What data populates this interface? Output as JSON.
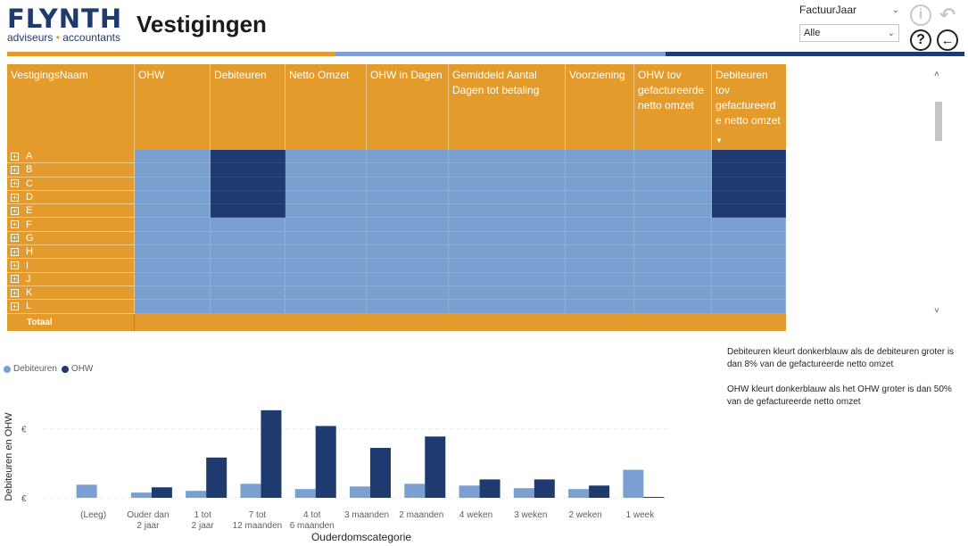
{
  "header": {
    "logo_main": "FLYNTH",
    "logo_sub_left": "adviseurs",
    "logo_sub_sep": "•",
    "logo_sub_right": "accountants",
    "title": "Vestigingen"
  },
  "slicer": {
    "label": "FactuurJaar",
    "value": "Alle"
  },
  "icons": {
    "info": "info-icon",
    "undo": "undo-icon",
    "help": "help-icon",
    "back": "back-icon"
  },
  "colors": {
    "orange": "#e39b2b",
    "light_blue": "#7aa0d2",
    "dark_blue": "#1f3a6e"
  },
  "table": {
    "columns": [
      "VestigingsNaam",
      "OHW",
      "Debiteuren",
      "Netto Omzet",
      "OHW in Dagen",
      "Gemiddeld Aantal Dagen tot betaling",
      "Voorziening",
      "OHW tov gefactureerde netto omzet",
      "Debiteuren tov gefactureerd e netto omzet"
    ],
    "rows": [
      {
        "name": "A",
        "dark": [
          2,
          8
        ]
      },
      {
        "name": "B",
        "dark": [
          2,
          8
        ]
      },
      {
        "name": "C",
        "dark": [
          2,
          8
        ]
      },
      {
        "name": "D",
        "dark": [
          2,
          8
        ]
      },
      {
        "name": "E",
        "dark": [
          2,
          8
        ]
      },
      {
        "name": "F",
        "dark": []
      },
      {
        "name": "G",
        "dark": []
      },
      {
        "name": "H",
        "dark": []
      },
      {
        "name": "I",
        "dark": []
      },
      {
        "name": "J",
        "dark": []
      },
      {
        "name": "K",
        "dark": []
      },
      {
        "name": "L",
        "dark": []
      }
    ],
    "total_label": "Totaal"
  },
  "notes": [
    "Debiteuren kleurt donkerblauw als de debiteuren groter is dan 8% van de gefactureerde netto omzet",
    "OHW kleurt donkerblauw als het OHW groter is dan 50% van de gefactureerde netto omzet"
  ],
  "chart_data": {
    "type": "bar",
    "title": "",
    "xlabel": "Ouderdomscategorie",
    "ylabel": "Debiteuren en OHW",
    "y_tick_labels": [
      "€",
      "€"
    ],
    "legend_position": "top-left",
    "categories": [
      "(Leeg)",
      "Ouder dan 2 jaar",
      "1 tot 2 jaar",
      "7 tot 12 maanden",
      "4 tot 6 maanden",
      "3 maanden",
      "2 maanden",
      "4 weken",
      "3 weken",
      "2 weken",
      "1 week"
    ],
    "series": [
      {
        "name": "Debiteuren",
        "color": "#7aa0d2",
        "values": [
          0.15,
          0.06,
          0.08,
          0.16,
          0.1,
          0.13,
          0.16,
          0.14,
          0.11,
          0.1,
          0.32
        ]
      },
      {
        "name": "OHW",
        "color": "#1f3a6e",
        "values": [
          0,
          0.12,
          0.46,
          1.0,
          0.82,
          0.57,
          0.7,
          0.21,
          0.21,
          0.14,
          0.01
        ]
      }
    ],
    "ylim": [
      0,
      1.1
    ]
  }
}
